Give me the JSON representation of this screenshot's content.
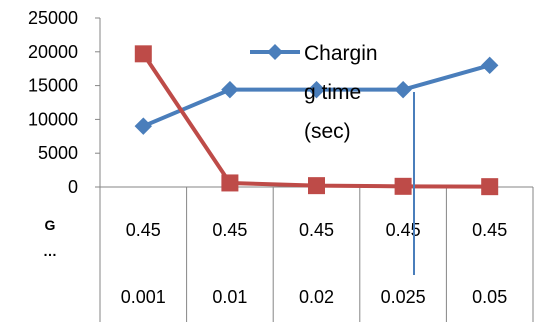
{
  "chart_data": {
    "type": "line",
    "title": "",
    "xlabel": "",
    "ylabel": "",
    "ylim": [
      0,
      25000
    ],
    "yticks": [
      "0",
      "5000",
      "10000",
      "15000",
      "20000",
      "25000"
    ],
    "categories_row1": [
      "0.45",
      "0.45",
      "0.45",
      "0.45",
      "0.45"
    ],
    "categories_row2": [
      "0.001",
      "0.01",
      "0.02",
      "0.025",
      "0.05"
    ],
    "row_label": "G …",
    "series": [
      {
        "name": "Charging time (sec)",
        "legend_lines": [
          "Chargin",
          "g time",
          "(sec)"
        ],
        "color": "#4a7ebb",
        "marker": "diamond",
        "values": [
          9000,
          14400,
          14400,
          14400,
          18000
        ]
      },
      {
        "color": "#be4b48",
        "marker": "square",
        "values": [
          19700,
          600,
          200,
          100,
          50
        ]
      }
    ],
    "legend_placement": "top-center",
    "grid": false
  }
}
